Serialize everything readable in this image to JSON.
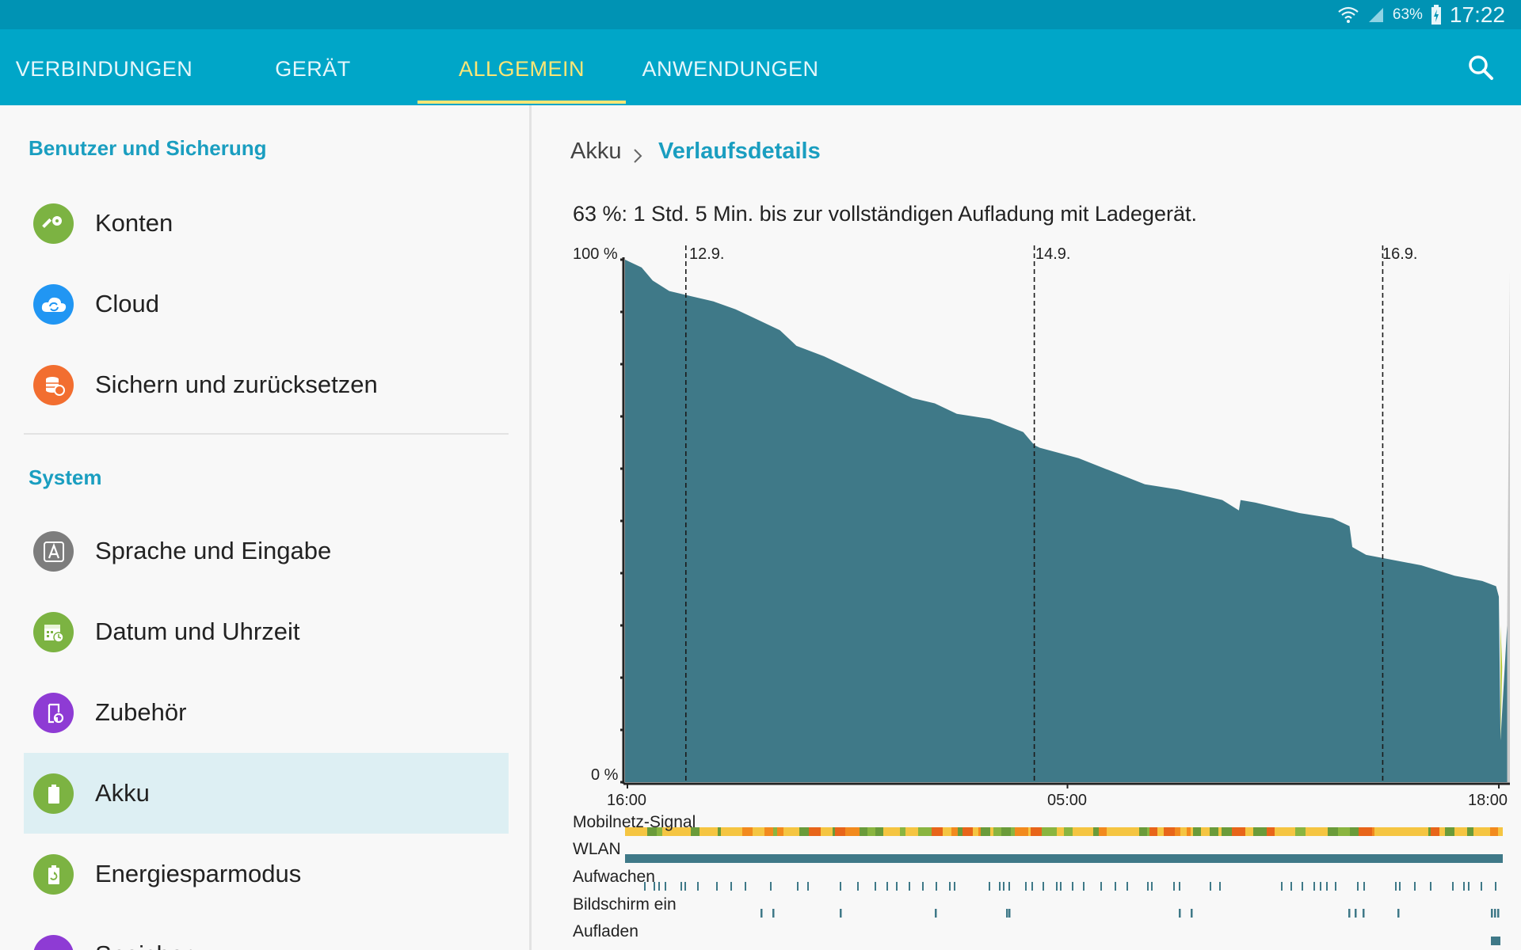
{
  "status_bar": {
    "battery_percent": "63%",
    "time": "17:22",
    "icons": [
      "wifi-icon",
      "signal-icon",
      "battery-charging-icon"
    ]
  },
  "tabs": [
    {
      "label": "VERBINDUNGEN",
      "active": false
    },
    {
      "label": "GERÄT",
      "active": false
    },
    {
      "label": "ALLGEMEIN",
      "active": true
    },
    {
      "label": "ANWENDUNGEN",
      "active": false
    }
  ],
  "sidebar": {
    "sections": [
      {
        "title": "Benutzer und Sicherung"
      },
      {
        "title": "System"
      }
    ],
    "items": [
      {
        "label": "Konten",
        "icon": "key-icon",
        "color": "#7cb342"
      },
      {
        "label": "Cloud",
        "icon": "cloud-sync-icon",
        "color": "#2196f3"
      },
      {
        "label": "Sichern und zurücksetzen",
        "icon": "backup-icon",
        "color": "#f26e30"
      },
      {
        "label": "Sprache und Eingabe",
        "icon": "language-icon",
        "color": "#7d7d7d"
      },
      {
        "label": "Datum und Uhrzeit",
        "icon": "calendar-clock-icon",
        "color": "#7cb342"
      },
      {
        "label": "Zubehör",
        "icon": "accessory-icon",
        "color": "#8e3bd4"
      },
      {
        "label": "Akku",
        "icon": "battery-icon",
        "color": "#7cb342",
        "selected": true
      },
      {
        "label": "Energiesparmodus",
        "icon": "power-saving-icon",
        "color": "#7cb342"
      },
      {
        "label": "Speicher",
        "icon": "storage-icon",
        "color": "#8e3bd4"
      }
    ]
  },
  "breadcrumb": {
    "root": "Akku",
    "current": "Verlaufsdetails"
  },
  "headline": "63 %: 1 Std. 5 Min. bis zur vollständigen Aufladung mit Ladegerät.",
  "chart_data": {
    "type": "area",
    "y_axis": {
      "max_label": "100 %",
      "min_label": "0 %",
      "ylim": [
        0,
        100
      ]
    },
    "x_ticks": [
      "16:00",
      "05:00",
      "18:00"
    ],
    "date_markers": [
      "12.9.",
      "14.9.",
      "16.9."
    ],
    "fill_color": "#3f7988",
    "series": [
      {
        "x_hours": [
          0,
          3,
          5,
          8,
          12,
          16,
          20,
          24,
          28,
          30,
          31,
          36,
          42,
          48,
          52,
          56,
          58,
          60,
          66,
          72,
          74,
          75,
          82,
          88,
          94,
          100,
          108,
          111,
          111.3,
          114,
          122,
          128,
          131,
          131.5,
          134,
          144,
          150,
          155,
          157.5,
          158,
          158.3,
          159.5,
          160
        ],
        "battery_pct": [
          100,
          98.5,
          96,
          94,
          93,
          92,
          90.5,
          88.5,
          86.5,
          84.5,
          83.5,
          81.5,
          78.5,
          75.5,
          73.5,
          72.5,
          71.5,
          70.5,
          69.5,
          67,
          64.5,
          64,
          62,
          59.5,
          57,
          56,
          54,
          52,
          54,
          53.5,
          51.5,
          50.5,
          49,
          45,
          43.5,
          41.5,
          39.5,
          38.5,
          37.5,
          35.5,
          8,
          30,
          100
        ]
      }
    ]
  },
  "status_rows": [
    {
      "label": "Mobilnetz-Signal"
    },
    {
      "label": "WLAN"
    },
    {
      "label": "Aufwachen"
    },
    {
      "label": "Bildschirm ein"
    },
    {
      "label": "Aufladen"
    }
  ]
}
